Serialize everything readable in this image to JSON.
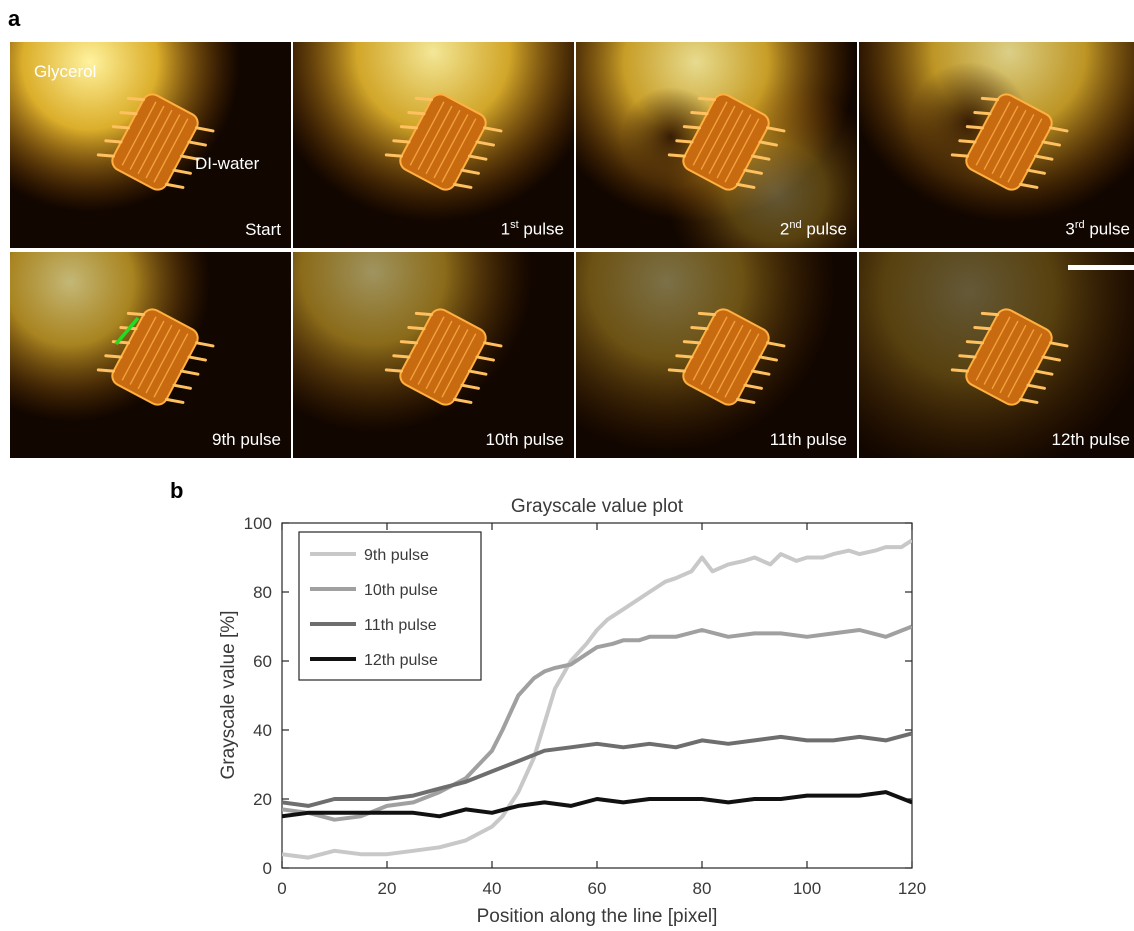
{
  "panel_a": {
    "letter": "a",
    "annotations": {
      "glycerol": "Glycerol",
      "water": "DI-water"
    },
    "frames": [
      {
        "label": "Start",
        "sup": "",
        "suffix": ""
      },
      {
        "label": "1",
        "sup": "st",
        "suffix": " pulse"
      },
      {
        "label": "2",
        "sup": "nd",
        "suffix": " pulse"
      },
      {
        "label": "3",
        "sup": "rd",
        "suffix": " pulse"
      },
      {
        "label": "9th pulse",
        "sup": "",
        "suffix": ""
      },
      {
        "label": "10th pulse",
        "sup": "",
        "suffix": ""
      },
      {
        "label": "11th pulse",
        "sup": "",
        "suffix": ""
      },
      {
        "label": "12th pulse",
        "sup": "",
        "suffix": ""
      }
    ],
    "colors": {
      "glow": "#ffcc33",
      "dark": "#110600",
      "marker_line": "#22dd22"
    }
  },
  "panel_b": {
    "letter": "b"
  },
  "chart_data": {
    "type": "line",
    "title": "Grayscale value plot",
    "xlabel": "Position along the line [pixel]",
    "ylabel": "Grayscale value [%]",
    "xlim": [
      0,
      120
    ],
    "ylim": [
      0,
      100
    ],
    "xticks": [
      0,
      20,
      40,
      60,
      80,
      100,
      120
    ],
    "yticks": [
      0,
      20,
      40,
      60,
      80,
      100
    ],
    "legend_position": "top-left",
    "grid": false,
    "series": [
      {
        "name": "9th pulse",
        "color": "#c8c8c8",
        "x": [
          0,
          5,
          10,
          15,
          20,
          25,
          30,
          35,
          40,
          42,
          45,
          48,
          50,
          52,
          55,
          58,
          60,
          62,
          65,
          68,
          70,
          73,
          75,
          78,
          80,
          82,
          85,
          88,
          90,
          93,
          95,
          98,
          100,
          103,
          105,
          108,
          110,
          113,
          115,
          118,
          120
        ],
        "y": [
          4,
          3,
          5,
          4,
          4,
          5,
          6,
          8,
          12,
          15,
          22,
          32,
          42,
          52,
          60,
          65,
          69,
          72,
          75,
          78,
          80,
          83,
          84,
          86,
          90,
          86,
          88,
          89,
          90,
          88,
          91,
          89,
          90,
          90,
          91,
          92,
          91,
          92,
          93,
          93,
          95
        ]
      },
      {
        "name": "10th pulse",
        "color": "#a0a0a0",
        "x": [
          0,
          5,
          10,
          15,
          20,
          25,
          30,
          35,
          40,
          42,
          45,
          48,
          50,
          52,
          55,
          58,
          60,
          63,
          65,
          68,
          70,
          75,
          80,
          85,
          90,
          95,
          100,
          105,
          110,
          115,
          120
        ],
        "y": [
          17,
          16,
          14,
          15,
          18,
          19,
          22,
          26,
          34,
          40,
          50,
          55,
          57,
          58,
          59,
          62,
          64,
          65,
          66,
          66,
          67,
          67,
          69,
          67,
          68,
          68,
          67,
          68,
          69,
          67,
          70
        ]
      },
      {
        "name": "11th pulse",
        "color": "#6e6e6e",
        "x": [
          0,
          5,
          10,
          15,
          20,
          25,
          30,
          35,
          40,
          45,
          50,
          55,
          60,
          65,
          70,
          75,
          80,
          85,
          90,
          95,
          100,
          105,
          110,
          115,
          120
        ],
        "y": [
          19,
          18,
          20,
          20,
          20,
          21,
          23,
          25,
          28,
          31,
          34,
          35,
          36,
          35,
          36,
          35,
          37,
          36,
          37,
          38,
          37,
          37,
          38,
          37,
          39
        ]
      },
      {
        "name": "12th pulse",
        "color": "#111111",
        "x": [
          0,
          5,
          10,
          15,
          20,
          25,
          30,
          35,
          40,
          45,
          50,
          55,
          60,
          65,
          70,
          75,
          80,
          85,
          90,
          95,
          100,
          105,
          110,
          115,
          120
        ],
        "y": [
          15,
          16,
          16,
          16,
          16,
          16,
          15,
          17,
          16,
          18,
          19,
          18,
          20,
          19,
          20,
          20,
          20,
          19,
          20,
          20,
          21,
          21,
          21,
          22,
          19
        ]
      }
    ]
  }
}
